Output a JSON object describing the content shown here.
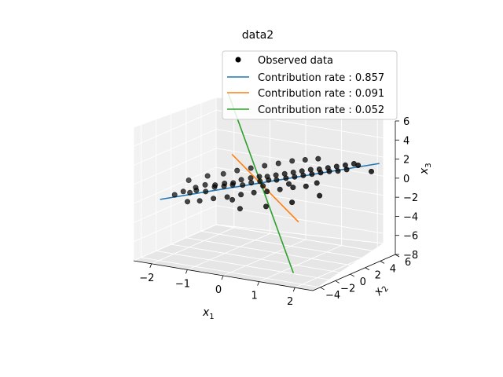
{
  "chart_data": {
    "type": "scatter",
    "title": "data2",
    "xlabel": "x",
    "xlabel_sub": "1",
    "ylabel": "x",
    "ylabel_sub": "2",
    "zlabel": "x",
    "zlabel_sub": "3",
    "xlim": [
      -2.5,
      2.5
    ],
    "ylim": [
      -5,
      6
    ],
    "zlim": [
      -8,
      6
    ],
    "x_ticks": [
      "−2",
      "−1",
      "0",
      "1",
      "2"
    ],
    "y_ticks": [
      "−4",
      "−2",
      "0",
      "2",
      "4",
      "6"
    ],
    "z_ticks": [
      "6",
      "4",
      "2",
      "0",
      "−2",
      "−4",
      "−6",
      "−8"
    ],
    "legend_position": "upper-right",
    "grid": true,
    "scatter_series": {
      "name": "Observed data",
      "color": "#000000",
      "points": [
        [
          -1.9,
          -2.4,
          -1.6
        ],
        [
          -1.7,
          -2.2,
          -1.2
        ],
        [
          -1.6,
          -1.8,
          -1.4
        ],
        [
          -1.5,
          -1.5,
          -0.9
        ],
        [
          -1.4,
          -1.9,
          -1.0
        ],
        [
          -1.3,
          -1.2,
          -0.6
        ],
        [
          -1.2,
          -1.6,
          -1.1
        ],
        [
          -1.1,
          -0.9,
          -0.8
        ],
        [
          -1.0,
          -1.3,
          -0.4
        ],
        [
          -0.9,
          -0.6,
          -0.7
        ],
        [
          -0.8,
          -1.0,
          -0.2
        ],
        [
          -0.7,
          -0.4,
          -0.5
        ],
        [
          -0.6,
          -0.8,
          -0.1
        ],
        [
          -0.5,
          -0.2,
          0.1
        ],
        [
          -0.4,
          -0.5,
          -0.3
        ],
        [
          -0.3,
          0.1,
          0.3
        ],
        [
          -0.2,
          -0.3,
          0.0
        ],
        [
          -0.1,
          0.3,
          0.5
        ],
        [
          0.0,
          -0.1,
          0.2
        ],
        [
          0.1,
          0.4,
          0.6
        ],
        [
          0.2,
          0.1,
          0.4
        ],
        [
          0.3,
          0.6,
          0.8
        ],
        [
          0.4,
          0.2,
          0.5
        ],
        [
          0.5,
          0.8,
          1.0
        ],
        [
          0.6,
          0.5,
          0.7
        ],
        [
          0.7,
          1.0,
          1.2
        ],
        [
          0.8,
          0.7,
          0.9
        ],
        [
          0.9,
          1.2,
          1.4
        ],
        [
          1.0,
          0.9,
          1.1
        ],
        [
          1.1,
          1.4,
          1.6
        ],
        [
          1.2,
          1.1,
          1.3
        ],
        [
          1.3,
          1.6,
          1.7
        ],
        [
          1.4,
          1.3,
          1.5
        ],
        [
          1.5,
          1.8,
          1.9
        ],
        [
          1.6,
          1.5,
          1.7
        ],
        [
          1.7,
          2.0,
          2.1
        ],
        [
          1.8,
          1.7,
          1.8
        ],
        [
          1.9,
          2.2,
          2.3
        ],
        [
          2.0,
          1.9,
          2.0
        ],
        [
          2.1,
          2.4,
          2.5
        ],
        [
          -1.5,
          -2.6,
          -2.0
        ],
        [
          -1.2,
          -2.4,
          -1.8
        ],
        [
          -0.9,
          -2.0,
          -1.5
        ],
        [
          -0.6,
          -1.6,
          -1.3
        ],
        [
          -0.3,
          -1.2,
          -1.0
        ],
        [
          0.0,
          -0.9,
          -0.7
        ],
        [
          0.3,
          -0.6,
          -0.5
        ],
        [
          0.6,
          -0.3,
          -0.2
        ],
        [
          0.9,
          0.0,
          0.1
        ],
        [
          1.2,
          0.3,
          0.3
        ],
        [
          -1.0,
          -0.2,
          0.4
        ],
        [
          -0.7,
          0.2,
          0.8
        ],
        [
          -0.4,
          0.6,
          1.1
        ],
        [
          -0.1,
          1.0,
          1.4
        ],
        [
          0.2,
          1.4,
          1.7
        ],
        [
          0.5,
          1.8,
          2.0
        ],
        [
          0.8,
          2.1,
          2.2
        ],
        [
          1.1,
          2.4,
          2.4
        ],
        [
          -0.2,
          -1.8,
          -2.2
        ],
        [
          0.4,
          -1.2,
          -1.8
        ],
        [
          1.0,
          -0.6,
          -1.2
        ],
        [
          1.6,
          0.2,
          -0.4
        ],
        [
          -1.8,
          -1.0,
          -0.5
        ],
        [
          -1.4,
          -0.4,
          0.0
        ],
        [
          2.3,
          2.0,
          2.6
        ],
        [
          2.5,
          2.8,
          1.8
        ],
        [
          0.0,
          0.3,
          -0.4
        ],
        [
          0.7,
          0.4,
          0.2
        ],
        [
          -0.5,
          -1.4,
          -1.6
        ],
        [
          1.4,
          0.8,
          0.6
        ]
      ]
    },
    "line_series": [
      {
        "name": "Contribution rate : 0.857",
        "color": "#1f77b4",
        "start": [
          -2.2,
          -2.9,
          -2.1
        ],
        "end": [
          2.6,
          3.4,
          2.5
        ]
      },
      {
        "name": "Contribution rate : 0.091",
        "color": "#ff7f0e",
        "start": [
          -1.2,
          1.9,
          1.6
        ],
        "end": [
          1.6,
          -2.6,
          -2.2
        ]
      },
      {
        "name": "Contribution rate : 0.052",
        "color": "#2ca02c",
        "start": [
          -2.0,
          5.2,
          6.4
        ],
        "end": [
          2.0,
          -5.2,
          -6.4
        ]
      }
    ]
  }
}
